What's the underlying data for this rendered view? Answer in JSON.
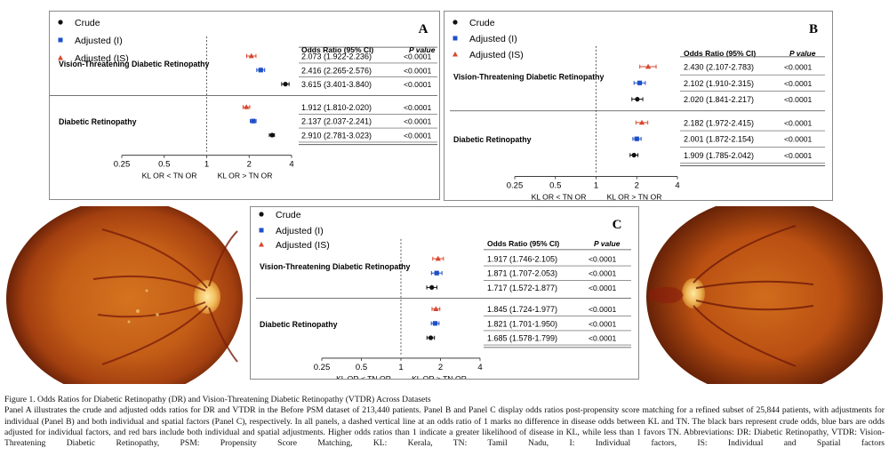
{
  "legend": {
    "crude": "Crude",
    "adjusted_i": "Adjusted (I)",
    "adjusted_is": "Adjusted (IS)"
  },
  "headers": {
    "or": "Odds Ratio (95% CI)",
    "p": "P value"
  },
  "xaxis": {
    "ticks": [
      "0.25",
      "0.5",
      "1",
      "2",
      "4"
    ],
    "tick_values": [
      0.25,
      0.5,
      1,
      2,
      4
    ],
    "left_label": "KL OR < TN OR",
    "right_label": "KL OR > TN OR",
    "scale": "log"
  },
  "groups": {
    "vtdr": "Vision-Threatening Diabetic Retinopathy",
    "dr": "Diabetic Retinopathy"
  },
  "colors": {
    "crude": "#111111",
    "adjusted_i": "#1f4fc8",
    "adjusted_is": "#d8462e"
  },
  "chart_data": [
    {
      "type": "forest",
      "panel": "A",
      "xlim": [
        0.25,
        4
      ],
      "rows": [
        {
          "group": "vtdr",
          "series": "adjusted_is",
          "or": 2.073,
          "lo": 1.922,
          "hi": 2.236,
          "text": "2.073 (1.922-2.236)",
          "p": "<0.0001"
        },
        {
          "group": "vtdr",
          "series": "adjusted_i",
          "or": 2.416,
          "lo": 2.265,
          "hi": 2.576,
          "text": "2.416 (2.265-2.576)",
          "p": "<0.0001"
        },
        {
          "group": "vtdr",
          "series": "crude",
          "or": 3.615,
          "lo": 3.401,
          "hi": 3.84,
          "text": "3.615 (3.401-3.840)",
          "p": "<0.0001"
        },
        {
          "group": "dr",
          "series": "adjusted_is",
          "or": 1.912,
          "lo": 1.81,
          "hi": 2.02,
          "text": "1.912 (1.810-2.020)",
          "p": "<0.0001"
        },
        {
          "group": "dr",
          "series": "adjusted_i",
          "or": 2.137,
          "lo": 2.037,
          "hi": 2.241,
          "text": "2.137 (2.037-2.241)",
          "p": "<0.0001"
        },
        {
          "group": "dr",
          "series": "crude",
          "or": 2.91,
          "lo": 2.781,
          "hi": 3.023,
          "text": "2.910 (2.781-3.023)",
          "p": "<0.0001"
        }
      ]
    },
    {
      "type": "forest",
      "panel": "B",
      "xlim": [
        0.25,
        4
      ],
      "rows": [
        {
          "group": "vtdr",
          "series": "adjusted_is",
          "or": 2.43,
          "lo": 2.107,
          "hi": 2.783,
          "text": "2.430 (2.107-2.783)",
          "p": "<0.0001"
        },
        {
          "group": "vtdr",
          "series": "adjusted_i",
          "or": 2.102,
          "lo": 1.91,
          "hi": 2.315,
          "text": "2.102 (1.910-2.315)",
          "p": "<0.0001"
        },
        {
          "group": "vtdr",
          "series": "crude",
          "or": 2.02,
          "lo": 1.841,
          "hi": 2.217,
          "text": "2.020 (1.841-2.217)",
          "p": "<0.0001"
        },
        {
          "group": "dr",
          "series": "adjusted_is",
          "or": 2.182,
          "lo": 1.972,
          "hi": 2.415,
          "text": "2.182 (1.972-2.415)",
          "p": "<0.0001"
        },
        {
          "group": "dr",
          "series": "adjusted_i",
          "or": 2.001,
          "lo": 1.872,
          "hi": 2.154,
          "text": "2.001 (1.872-2.154)",
          "p": "<0.0001"
        },
        {
          "group": "dr",
          "series": "crude",
          "or": 1.909,
          "lo": 1.785,
          "hi": 2.042,
          "text": "1.909 (1.785-2.042)",
          "p": "<0.0001"
        }
      ]
    },
    {
      "type": "forest",
      "panel": "C",
      "xlim": [
        0.25,
        4
      ],
      "rows": [
        {
          "group": "vtdr",
          "series": "adjusted_is",
          "or": 1.917,
          "lo": 1.746,
          "hi": 2.105,
          "text": "1.917 (1.746-2.105)",
          "p": "<0.0001"
        },
        {
          "group": "vtdr",
          "series": "adjusted_i",
          "or": 1.871,
          "lo": 1.707,
          "hi": 2.053,
          "text": "1.871 (1.707-2.053)",
          "p": "<0.0001"
        },
        {
          "group": "vtdr",
          "series": "crude",
          "or": 1.717,
          "lo": 1.572,
          "hi": 1.877,
          "text": "1.717 (1.572-1.877)",
          "p": "<0.0001"
        },
        {
          "group": "dr",
          "series": "adjusted_is",
          "or": 1.845,
          "lo": 1.724,
          "hi": 1.977,
          "text": "1.845 (1.724-1.977)",
          "p": "<0.0001"
        },
        {
          "group": "dr",
          "series": "adjusted_i",
          "or": 1.821,
          "lo": 1.701,
          "hi": 1.95,
          "text": "1.821 (1.701-1.950)",
          "p": "<0.0001"
        },
        {
          "group": "dr",
          "series": "crude",
          "or": 1.685,
          "lo": 1.578,
          "hi": 1.799,
          "text": "1.685 (1.578-1.799)",
          "p": "<0.0001"
        }
      ]
    }
  ],
  "caption": {
    "title": "Figure 1.  Odds Ratios for Diabetic Retinopathy (DR) and Vision-Threatening Diabetic Retinopathy (VTDR) Across Datasets",
    "body": "Panel A illustrates the crude and adjusted odds ratios for DR and VTDR in the Before PSM dataset of 213,440 patients. Panel B and Panel C display odds ratios post-propensity score matching for a refined subset of 25,844 patients, with adjustments for individual (Panel B) and both individual and spatial factors (Panel C), respectively. In all panels, a dashed vertical line at an odds ratio of 1 marks no difference in disease odds between KL and TN. The black bars represent crude odds, blue bars are odds adjusted for individual factors, and red bars include both individual and spatial adjustments. Higher odds ratios than 1 indicate a greater likelihood of disease in KL, while less than 1 favors TN. Abbreviations: DR: Diabetic Retinopathy, VTDR: Vision-Threatening Diabetic Retinopathy, PSM: Propensity Score Matching, KL: Kerala, TN: Tamil Nadu, I: Individual factors, IS: Individual and Spatial factors"
  }
}
